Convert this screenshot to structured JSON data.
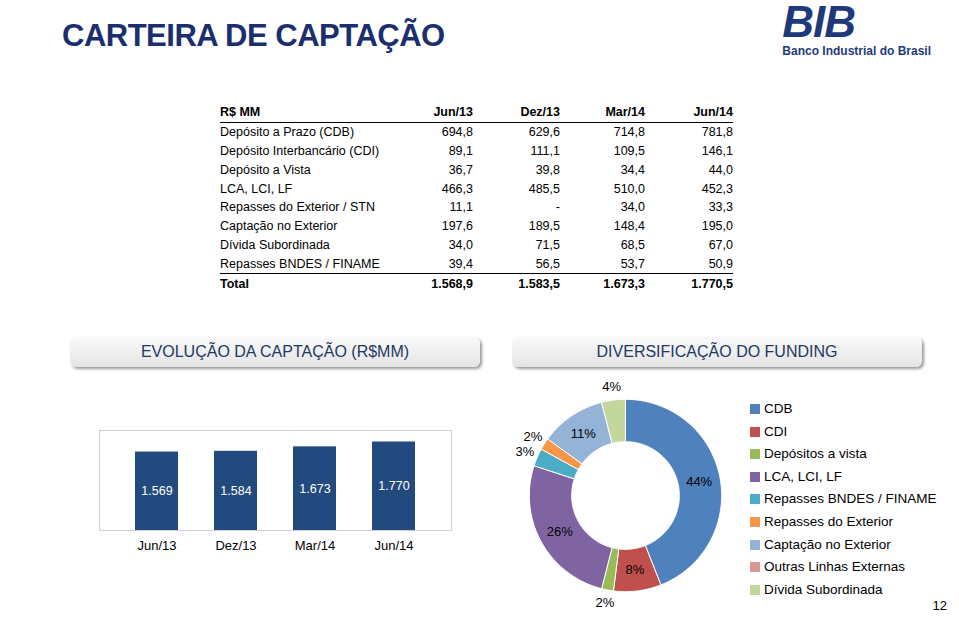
{
  "header": {
    "title": "CARTEIRA DE CAPTAÇÃO",
    "logo_text": "BIB",
    "logo_subtitle": "Banco Industrial do Brasil"
  },
  "table": {
    "columns": [
      "R$ MM",
      "Jun/13",
      "Dez/13",
      "Mar/14",
      "Jun/14"
    ],
    "rows": [
      [
        "Depósito a Prazo (CDB)",
        "694,8",
        "629,6",
        "714,8",
        "781,8"
      ],
      [
        "Depósito Interbancário (CDI)",
        "89,1",
        "111,1",
        "109,5",
        "146,1"
      ],
      [
        "Depósito a Vista",
        "36,7",
        "39,8",
        "34,4",
        "44,0"
      ],
      [
        "LCA, LCI, LF",
        "466,3",
        "485,5",
        "510,0",
        "452,3"
      ],
      [
        "Repasses do Exterior / STN",
        "11,1",
        "-",
        "34,0",
        "33,3"
      ],
      [
        "Captação no Exterior",
        "197,6",
        "189,5",
        "148,4",
        "195,0"
      ],
      [
        "Dívida Subordinada",
        "34,0",
        "71,5",
        "68,5",
        "67,0"
      ],
      [
        "Repasses BNDES / FINAME",
        "39,4",
        "56,5",
        "53,7",
        "50,9"
      ]
    ],
    "total_row": [
      "Total",
      "1.568,9",
      "1.583,5",
      "1.673,3",
      "1.770,5"
    ]
  },
  "chart_data": [
    {
      "type": "bar",
      "title": "EVOLUÇÃO DA CAPTAÇÃO (R$MM)",
      "categories": [
        "Jun/13",
        "Dez/13",
        "Mar/14",
        "Jun/14"
      ],
      "values": [
        1569,
        1584,
        1673,
        1770
      ],
      "value_labels": [
        "1.569",
        "1.584",
        "1.673",
        "1.770"
      ],
      "data_labels": true,
      "color": "#234a7e",
      "ylim": [
        0,
        2000
      ],
      "tick_labels": "x"
    },
    {
      "type": "pie",
      "title": "DIVERSIFICAÇÃO DO FUNDING",
      "categories": [
        "CDB",
        "CDI",
        "Depósitos a vista",
        "LCA, LCI, LF",
        "Repasses BNDES / FINAME",
        "Repasses do Exterior",
        "Captação no Exterior",
        "Outras Linhas Externas",
        "Dívida Subordinada"
      ],
      "values": [
        44,
        8,
        2,
        26,
        3,
        2,
        11,
        0,
        4
      ],
      "value_labels": [
        "44%",
        "8%",
        "2%",
        "26%",
        "3%",
        "2%",
        "11%",
        null,
        "4%"
      ],
      "colors": [
        "#4f81bd",
        "#c0504d",
        "#9bbb59",
        "#8064a2",
        "#4bacc6",
        "#f79646",
        "#95b3d7",
        "#d99694",
        "#c3d69b"
      ],
      "data_labels": true,
      "legend": "right"
    }
  ],
  "page_number": "12"
}
